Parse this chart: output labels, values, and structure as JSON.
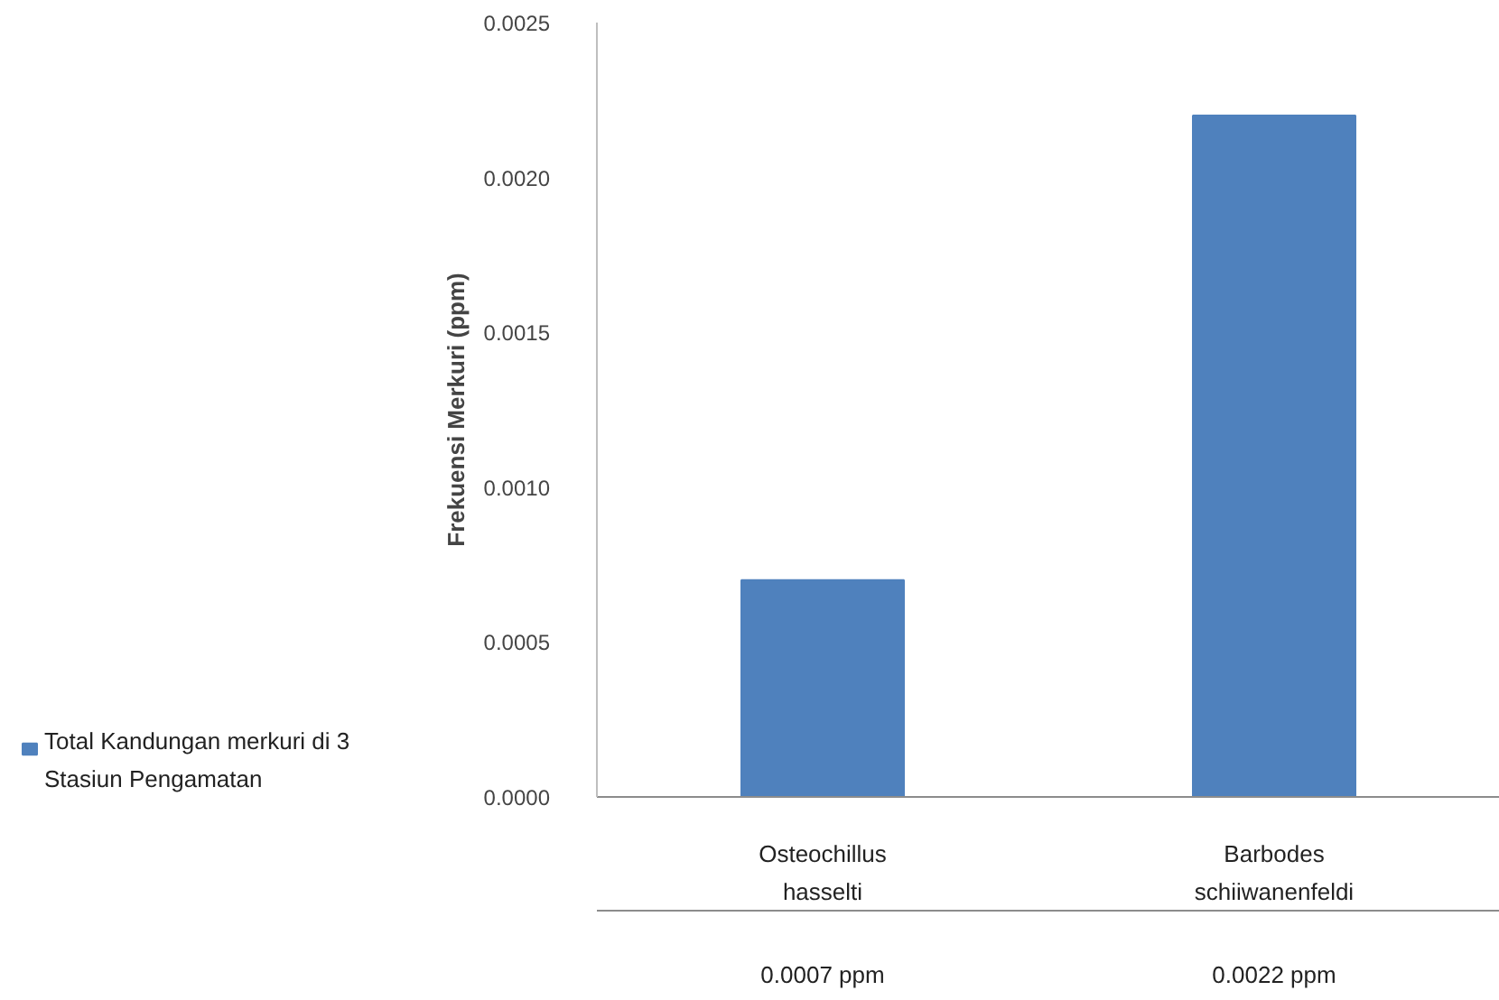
{
  "chart_data": {
    "type": "bar",
    "ylabel": "Frekuensi Merkuri (ppm)",
    "categories": [
      "Osteochillus hasselti",
      "Barbodes schiiwanenfeldi"
    ],
    "series": [
      {
        "name": "Total Kandungan merkuri di 3 Stasiun Pengamatan",
        "color": "#4f81bd",
        "values": [
          0.0007,
          0.0022
        ],
        "value_labels": [
          "0.0007 ppm",
          "0.0022 ppm"
        ]
      }
    ],
    "ylim": [
      0,
      0.0025
    ],
    "yticks": [
      {
        "value": 0,
        "label": "0.0000"
      },
      {
        "value": 0.0005,
        "label": "0.0005"
      },
      {
        "value": 0.001,
        "label": "0.0010"
      },
      {
        "value": 0.0015,
        "label": "0.0015"
      },
      {
        "value": 0.002,
        "label": "0.0020"
      },
      {
        "value": 0.0025,
        "label": "0.0025"
      }
    ],
    "grid": false,
    "legend": "bottom"
  }
}
